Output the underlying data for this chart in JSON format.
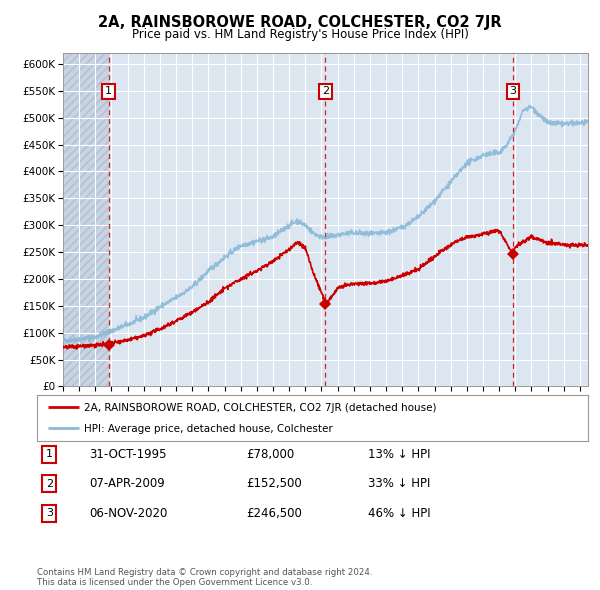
{
  "title": "2A, RAINSBOROWE ROAD, COLCHESTER, CO2 7JR",
  "subtitle": "Price paid vs. HM Land Registry's House Price Index (HPI)",
  "transactions": [
    {
      "num": 1,
      "date": "31-OCT-1995",
      "date_x": 1995.83,
      "price": 78000,
      "label": "1"
    },
    {
      "num": 2,
      "date": "07-APR-2009",
      "date_x": 2009.25,
      "price": 152500,
      "label": "2"
    },
    {
      "num": 3,
      "date": "06-NOV-2020",
      "date_x": 2020.85,
      "price": 246500,
      "label": "3"
    }
  ],
  "legend_entries": [
    "2A, RAINSBOROWE ROAD, COLCHESTER, CO2 7JR (detached house)",
    "HPI: Average price, detached house, Colchester"
  ],
  "table_rows": [
    {
      "num": 1,
      "date": "31-OCT-1995",
      "price": "£78,000",
      "hpi": "13% ↓ HPI"
    },
    {
      "num": 2,
      "date": "07-APR-2009",
      "price": "£152,500",
      "hpi": "33% ↓ HPI"
    },
    {
      "num": 3,
      "date": "06-NOV-2020",
      "price": "£246,500",
      "hpi": "46% ↓ HPI"
    }
  ],
  "footer": "Contains HM Land Registry data © Crown copyright and database right 2024.\nThis data is licensed under the Open Government Licence v3.0.",
  "hpi_color": "#89b8d8",
  "price_color": "#cc0000",
  "marker_color": "#cc0000",
  "vline_color": "#cc0000",
  "plot_bg": "#dce6f1",
  "ylim": [
    0,
    620000
  ],
  "xlim": [
    1993.0,
    2025.5
  ],
  "yticks": [
    0,
    50000,
    100000,
    150000,
    200000,
    250000,
    300000,
    350000,
    400000,
    450000,
    500000,
    550000,
    600000
  ],
  "ytick_labels": [
    "£0",
    "£50K",
    "£100K",
    "£150K",
    "£200K",
    "£250K",
    "£300K",
    "£350K",
    "£400K",
    "£450K",
    "£500K",
    "£550K",
    "£600K"
  ],
  "xticks": [
    1993,
    1994,
    1995,
    1996,
    1997,
    1998,
    1999,
    2000,
    2001,
    2002,
    2003,
    2004,
    2005,
    2006,
    2007,
    2008,
    2009,
    2010,
    2011,
    2012,
    2013,
    2014,
    2015,
    2016,
    2017,
    2018,
    2019,
    2020,
    2021,
    2022,
    2023,
    2024,
    2025
  ],
  "hpi_knots_x": [
    1993,
    1994,
    1995,
    1996,
    1997,
    1998,
    1999,
    2000,
    2001,
    2002,
    2003,
    2004,
    2005,
    2006,
    2007,
    2007.5,
    2008.0,
    2008.5,
    2009.0,
    2009.5,
    2010,
    2011,
    2012,
    2013,
    2014,
    2015,
    2016,
    2017,
    2018,
    2019,
    2020,
    2020.5,
    2021.0,
    2021.5,
    2022.0,
    2022.5,
    2023,
    2024,
    2025
  ],
  "hpi_knots_y": [
    85000,
    88000,
    92000,
    103000,
    115000,
    128000,
    148000,
    165000,
    185000,
    215000,
    240000,
    262000,
    270000,
    278000,
    300000,
    308000,
    300000,
    285000,
    278000,
    278000,
    282000,
    286000,
    283000,
    286000,
    296000,
    315000,
    345000,
    380000,
    415000,
    430000,
    435000,
    450000,
    475000,
    515000,
    520000,
    505000,
    490000,
    488000,
    490000
  ],
  "price_knots_x": [
    1993,
    1994,
    1995,
    1995.83,
    1996,
    1997,
    1998,
    1999,
    2000,
    2001,
    2002,
    2003,
    2004,
    2005,
    2006,
    2007,
    2007.5,
    2008.0,
    2008.5,
    2009.0,
    2009.25,
    2009.5,
    2010,
    2011,
    2012,
    2013,
    2014,
    2015,
    2016,
    2017,
    2018,
    2019,
    2020,
    2020.85,
    2021,
    2022,
    2023,
    2024,
    2025
  ],
  "price_knots_y": [
    73000,
    75000,
    77000,
    78000,
    80000,
    86000,
    94000,
    107000,
    122000,
    138000,
    157000,
    182000,
    200000,
    215000,
    233000,
    255000,
    268000,
    258000,
    210000,
    175000,
    152500,
    162000,
    183000,
    191000,
    192000,
    196000,
    206000,
    218000,
    242000,
    264000,
    278000,
    283000,
    290000,
    246500,
    260000,
    278000,
    268000,
    263000,
    263000
  ]
}
